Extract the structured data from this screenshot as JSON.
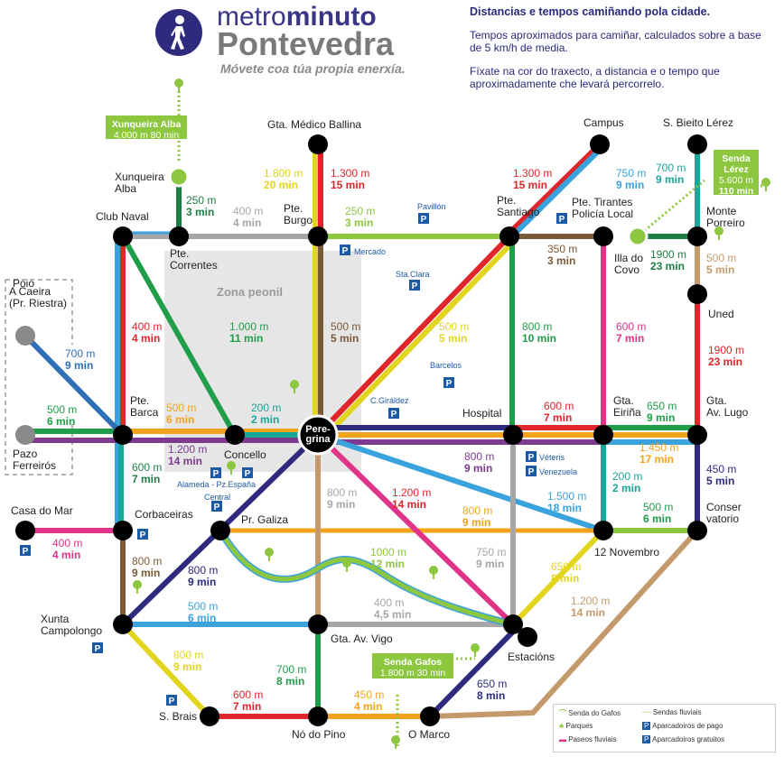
{
  "brand": {
    "line1a": "metro",
    "line1b": "minuto",
    "line2": "Pontevedra",
    "tagline": "Móvete coa túa propia enerxía."
  },
  "header": {
    "title": "Distancias e tempos camiñando pola cidade.",
    "p1": "Tempos aproximados para camiñar, calculados sobre a base de 5 km/h de media.",
    "p2": "Fíxate na cor do traxecto, a distancia e o tempo que aproximadamente che levará percorrelo."
  },
  "colors": {
    "red": "#e0262a",
    "yellow": "#e3d51e",
    "green": "#1f9d48",
    "blue": "#3aa2dc",
    "gray": "#a6a6a6",
    "brown": "#7a5a36",
    "navy": "#2e2a7e",
    "purple": "#7e3a8f",
    "orange": "#f3a31b",
    "lime": "#8dc63f",
    "teal": "#1aa79a",
    "pink": "#e0338a",
    "darkgreen": "#1d7f43",
    "tan": "#c49a6c",
    "sandblue": "#2f6fb6"
  },
  "zone": "Zona peonil",
  "stations": {
    "peregrina": "Pere-\ngrina",
    "club_naval": "Club Naval",
    "pte_correntes": "Pte.\nCorrentes",
    "pte_burgo": "Pte.\nBurgo",
    "gta_medico": "Gta. Médico Ballina",
    "pte_santiago": "Pte.\nSantiago",
    "campus": "Campus",
    "pte_tirantes": "Pte. Tirantes\nPolicía Local",
    "illa_covo": "Illa do\nCovo",
    "s_bieito": "S. Bieito Lérez",
    "monte_porreiro": "Monte\nPorreiro",
    "uned": "Uned",
    "gta_eirina": "Gta.\nEiriña",
    "gta_lugo": "Gta.\nAv. Lugo",
    "hospital": "Hospital",
    "conservatorio": "Conser\nvatorio",
    "doce_nov": "12 Novembro",
    "estacions": "Estacións",
    "o_marco": "O Marco",
    "no_pino": "Nó do Pino",
    "s_brais": "S. Brais",
    "gta_vigo": "Gta. Av. Vigo",
    "xunta": "Xunta\nCampolongo",
    "corbaceiras": "Corbaceiras",
    "casa_mar": "Casa do Mar",
    "pr_galiza": "Pr. Galiza",
    "concello": "Concello",
    "pte_barca": "Pte.\nBarca",
    "pazo": "Pazo\nFerreirós",
    "caeira": "A Caeira\n(Pr. Riestra)",
    "poio": "Poio",
    "xunqueira": "Xunqueira\nAlba"
  },
  "routes": {
    "xunq_alba_box": {
      "a": "Xunqueira Alba",
      "m": "4.000 m",
      "t": "80 min"
    },
    "lerez_box": {
      "a": "Senda",
      "b": "Lérez",
      "m": "5.600 m",
      "t": "110 min"
    },
    "gafos_box": {
      "a": "Senda Gafos",
      "m": "1.800 m",
      "t": "30 min"
    },
    "r1": {
      "m": "250 m",
      "t": "3 min"
    },
    "r2": {
      "m": "400 m",
      "t": "4 min"
    },
    "r3": {
      "m": "1.800 m",
      "t": "20 min"
    },
    "r4": {
      "m": "1.300 m",
      "t": "15 min"
    },
    "r5": {
      "m": "250 m",
      "t": "3 min"
    },
    "r6": {
      "m": "1.300 m",
      "t": "15 min"
    },
    "r7": {
      "m": "750 m",
      "t": "9 min"
    },
    "r8": {
      "m": "350 m",
      "t": "3 min"
    },
    "r9": {
      "m": "700 m",
      "t": "9 min"
    },
    "r10": {
      "m": "1900 m",
      "t": "23 min"
    },
    "r11": {
      "m": "500 m",
      "t": "5 min"
    },
    "r12": {
      "m": "400 m",
      "t": "4 min"
    },
    "r13": {
      "m": "1.000 m",
      "t": "11 min"
    },
    "r14": {
      "m": "500 m",
      "t": "5 min"
    },
    "r15": {
      "m": "500 m",
      "t": "5 min"
    },
    "r16": {
      "m": "800 m",
      "t": "10 min"
    },
    "r17": {
      "m": "600 m",
      "t": "7 min"
    },
    "r18": {
      "m": "1900 m",
      "t": "23 min"
    },
    "r19": {
      "m": "700 m",
      "t": "9 min"
    },
    "r20": {
      "m": "500 m",
      "t": "6 min"
    },
    "r21": {
      "m": "500 m",
      "t": "6 min"
    },
    "r22": {
      "m": "200 m",
      "t": "2 min"
    },
    "r23": {
      "m": "600 m",
      "t": "7 min"
    },
    "r24": {
      "m": "200 m",
      "t": "2 min"
    },
    "r25": {
      "m": "650 m",
      "t": "9 min"
    },
    "r26": {
      "m": "1.200 m",
      "t": "14 min"
    },
    "r27": {
      "m": "600 m",
      "t": "7 min"
    },
    "r28": {
      "m": "800 m",
      "t": "9 min"
    },
    "r29": {
      "m": "1.450 m",
      "t": "17 min"
    },
    "r30": {
      "m": "450 m",
      "t": "5 min"
    },
    "r31": {
      "m": "800 m",
      "t": "9 min"
    },
    "r32": {
      "m": "1.200 m",
      "t": "14 min"
    },
    "r33": {
      "m": "1.500 m",
      "t": "18 min"
    },
    "r34": {
      "m": "200 m",
      "t": "2 min"
    },
    "r35": {
      "m": "500 m",
      "t": "6 min"
    },
    "r36": {
      "m": "400 m",
      "t": "4 min"
    },
    "r37": {
      "m": "800 m",
      "t": "9 min"
    },
    "r38": {
      "m": "800 m",
      "t": "9 min"
    },
    "r39": {
      "m": "1000 m",
      "t": "12 min"
    },
    "r40": {
      "m": "750 m",
      "t": "9 min"
    },
    "r41": {
      "m": "650 m",
      "t": "8 min"
    },
    "r42": {
      "m": "800 m",
      "t": "9 min"
    },
    "r43": {
      "m": "500 m",
      "t": "6 min"
    },
    "r44": {
      "m": "400 m",
      "t": "4,5 min"
    },
    "r45": {
      "m": "1.200 m",
      "t": "14 min"
    },
    "r46": {
      "m": "800 m",
      "t": "9 min"
    },
    "r47": {
      "m": "700 m",
      "t": "8 min"
    },
    "r48": {
      "m": "650 m",
      "t": "8 min"
    },
    "r49": {
      "m": "600 m",
      "t": "7 min"
    },
    "r50": {
      "m": "450 m",
      "t": "4 min"
    }
  },
  "pois": {
    "pavillon": "Pavillón",
    "mercado": "Mercado",
    "sta_clara": "Sta.Clara",
    "barcelos": "Barcelos",
    "giraldez": "C.Giráldez",
    "veteris": "Véteris",
    "venezuela": "Venezuela",
    "alameda": "Alameda - Pz.España",
    "central": "Central"
  },
  "legend": {
    "gafos": "Senda do Gafos",
    "parques": "Parques",
    "paseos": "Paseos fluviais",
    "sendas": "Sendas fluviais",
    "pago": "Aparcadoiros de pago",
    "gratis": "Aparcadoiros gratuitos"
  }
}
